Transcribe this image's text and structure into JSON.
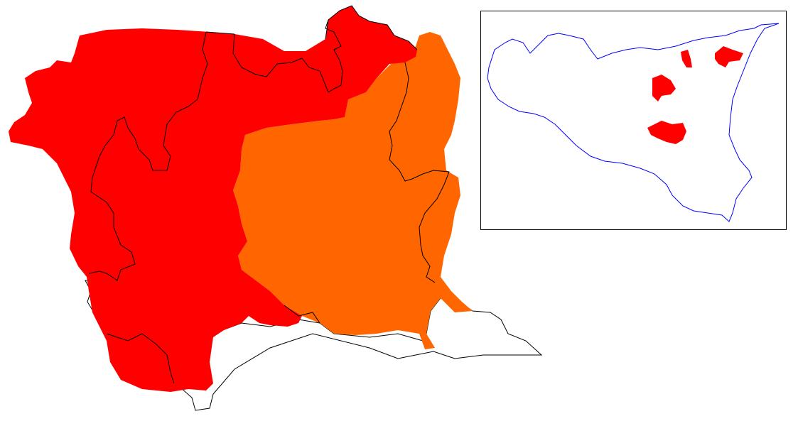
{
  "main_map": {
    "regions": [
      {
        "id": "red-zone",
        "fill": "#ff0000"
      },
      {
        "id": "orange-zone",
        "fill": "#ff6600"
      },
      {
        "id": "white-zone",
        "fill": "#ffffff"
      }
    ],
    "border_color": "#000000"
  },
  "inset_map": {
    "frame_color": "#000000",
    "outline_color": "#0000ff",
    "highlight_color": "#ff0000",
    "highlight_patch_count": 4
  }
}
